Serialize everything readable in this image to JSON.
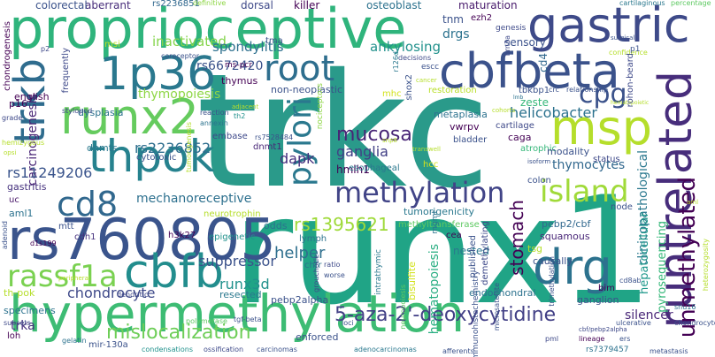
{
  "wordcloud": {
    "words": [
      {
        "text": "trkc",
        "color": "#2a9a8a"
      },
      {
        "text": "runx1",
        "color": "#20a486"
      },
      {
        "text": "proprioceptive",
        "color": "#2fb47c"
      },
      {
        "text": "hypermethylation",
        "color": "#3dbc74"
      },
      {
        "text": "rs760805",
        "color": "#3a548c"
      },
      {
        "text": "runx2",
        "color": "#65cb5e"
      },
      {
        "text": "gastric",
        "color": "#3e4a89"
      },
      {
        "text": "cbfbeta",
        "color": "#3b528b"
      },
      {
        "text": "thpok",
        "color": "#26828e"
      },
      {
        "text": "1p36",
        "color": "#2a788e"
      },
      {
        "text": "runtrelated",
        "color": "#472d7b"
      },
      {
        "text": "drg",
        "color": "#2c728e"
      },
      {
        "text": "msp",
        "color": "#b5de2b"
      },
      {
        "text": "cbfb",
        "color": "#228d8d"
      },
      {
        "text": "trkb",
        "color": "#2f6c8e"
      },
      {
        "text": "root",
        "color": "#2e6e8e"
      },
      {
        "text": "methylation",
        "color": "#414487"
      },
      {
        "text": "island",
        "color": "#a0da39"
      },
      {
        "text": "cd8",
        "color": "#31688e"
      },
      {
        "text": "rassf1a",
        "color": "#7ad151"
      },
      {
        "text": "pylori",
        "color": "#2a788e"
      },
      {
        "text": "cpg",
        "color": "#3b528b"
      },
      {
        "text": "unmethylated",
        "color": "#440154"
      },
      {
        "text": "rs1395621",
        "color": "#9fda3a"
      },
      {
        "text": "mucosa",
        "color": "#482576"
      },
      {
        "text": "mislocalization",
        "color": "#6ece58"
      },
      {
        "text": "5-aza-2'-deoxycytidine",
        "color": "#424086"
      },
      {
        "text": "stomach",
        "color": "#440154"
      },
      {
        "text": "clinicopathological",
        "color": "#2a788e"
      },
      {
        "text": "inactivated",
        "color": "#84d44b"
      },
      {
        "text": "spondylitis",
        "color": "#2d708e"
      },
      {
        "text": "ankylosing",
        "color": "#21918c"
      },
      {
        "text": "rs6672420",
        "color": "#3b528b"
      },
      {
        "text": "thymopoiesis",
        "color": "#8ed645"
      },
      {
        "text": "helicobacter",
        "color": "#2c728e"
      },
      {
        "text": "carcinogenesis",
        "color": "#482475"
      },
      {
        "text": "dapk",
        "color": "#46307e"
      },
      {
        "text": "rs2236852",
        "color": "#2e6e8e"
      },
      {
        "text": "rs11249206",
        "color": "#3a548c"
      },
      {
        "text": "mechanoreceptive",
        "color": "#2d708e"
      },
      {
        "text": "chondrocyte",
        "color": "#3e4989"
      },
      {
        "text": "runx3d",
        "color": "#21918c"
      },
      {
        "text": "helper",
        "color": "#2e6f8e"
      },
      {
        "text": "suppressor",
        "color": "#3b528b"
      },
      {
        "text": "hematopoiesis",
        "color": "#27ad81"
      },
      {
        "text": "ganglia",
        "color": "#424086"
      },
      {
        "text": "thymocytes",
        "color": "#31688e"
      },
      {
        "text": "pyrosequencing",
        "color": "#35b779"
      },
      {
        "text": "hepatocellular",
        "color": "#1f988b"
      },
      {
        "text": "silencer",
        "color": "#482677"
      },
      {
        "text": "trka",
        "color": "#46327e"
      },
      {
        "text": "aberrant",
        "color": "#472c7a"
      },
      {
        "text": "colorectal",
        "color": "#3b528b"
      },
      {
        "text": "osteoblast",
        "color": "#2c728e"
      },
      {
        "text": "killer",
        "color": "#440154"
      },
      {
        "text": "dorsal",
        "color": "#3e4989"
      },
      {
        "text": "maturation",
        "color": "#481a6c"
      },
      {
        "text": "rs2236851",
        "color": "#31688e"
      },
      {
        "text": "definitive",
        "color": "#8ed645"
      },
      {
        "text": "cartilaginous",
        "color": "#2a788e"
      },
      {
        "text": "percentage",
        "color": "#5ec962"
      },
      {
        "text": "drgs",
        "color": "#2c728e"
      },
      {
        "text": "tnm",
        "color": "#3b528b"
      },
      {
        "text": "ezh2",
        "color": "#440154"
      },
      {
        "text": "sensory",
        "color": "#3b528b"
      },
      {
        "text": "cd4",
        "color": "#31688e"
      },
      {
        "text": "genesis",
        "color": "#3e4a89"
      },
      {
        "text": "tma",
        "color": "#3b528b"
      },
      {
        "text": "msi",
        "color": "#bddf26"
      },
      {
        "text": "thymus",
        "color": "#440154"
      },
      {
        "text": "non-neoplastic",
        "color": "#3b528b"
      },
      {
        "text": "restoration",
        "color": "#b8de29"
      },
      {
        "text": "mhc",
        "color": "#d2e21b"
      },
      {
        "text": "english",
        "color": "#440154"
      },
      {
        "text": "dysplasia",
        "color": "#2c728e"
      },
      {
        "text": "gastritis",
        "color": "#46327e"
      },
      {
        "text": "uc",
        "color": "#481668"
      },
      {
        "text": "aml1",
        "color": "#2c728e"
      },
      {
        "text": "dnmts",
        "color": "#2a788e"
      },
      {
        "text": "cytotoxic",
        "color": "#3b528b"
      },
      {
        "text": "embase",
        "color": "#3e4989"
      },
      {
        "text": "dnmt1",
        "color": "#482677"
      },
      {
        "text": "hmlh1",
        "color": "#440154"
      },
      {
        "text": "nociceptors",
        "color": "#8ed645"
      },
      {
        "text": "metaplasia",
        "color": "#2c728e"
      },
      {
        "text": "tbkbp1",
        "color": "#3b528b"
      },
      {
        "text": "zeste",
        "color": "#35b779"
      },
      {
        "text": "vwrpv",
        "color": "#440154"
      },
      {
        "text": "cartilage",
        "color": "#3e4989"
      },
      {
        "text": "caga",
        "color": "#440154"
      },
      {
        "text": "bladder",
        "color": "#3b528b"
      },
      {
        "text": "atrophic",
        "color": "#35b779"
      },
      {
        "text": "modality",
        "color": "#3b528b"
      },
      {
        "text": "status",
        "color": "#3e4989"
      },
      {
        "text": "colon",
        "color": "#3b528b"
      },
      {
        "text": "esophageal",
        "color": "#2a788e"
      },
      {
        "text": "hcc",
        "color": "#d2e21b"
      },
      {
        "text": "node",
        "color": "#3b528b"
      },
      {
        "text": "mtt",
        "color": "#3b528b"
      },
      {
        "text": "cdh1",
        "color": "#46327e"
      },
      {
        "text": "h3k27",
        "color": "#440154"
      },
      {
        "text": "epigenetic",
        "color": "#21918c"
      },
      {
        "text": "neurotrophin",
        "color": "#b5de2b"
      },
      {
        "text": "odds",
        "color": "#2c728e"
      },
      {
        "text": "tumorigenicity",
        "color": "#2a788e"
      },
      {
        "text": "methyltransferase",
        "color": "#5ec962"
      },
      {
        "text": "lymph",
        "color": "#2c728e"
      },
      {
        "text": "nested",
        "color": "#2a788e"
      },
      {
        "text": "cea",
        "color": "#440154"
      },
      {
        "text": "published",
        "color": "#3b528b"
      },
      {
        "text": "demethylating",
        "color": "#3e4989"
      },
      {
        "text": "pebp2/cbf",
        "color": "#31688e"
      },
      {
        "text": "squamous",
        "color": "#482677"
      },
      {
        "text": "tsg",
        "color": "#b5de2b"
      },
      {
        "text": "causally",
        "color": "#3b528b"
      },
      {
        "text": "endochondral",
        "color": "#2c728e"
      },
      {
        "text": "resected",
        "color": "#2a788e"
      },
      {
        "text": "pebp2alpha",
        "color": "#3b528b"
      },
      {
        "text": "chfr",
        "color": "#2c728e"
      },
      {
        "text": "bisulfite",
        "color": "#d2e21b"
      },
      {
        "text": "bim",
        "color": "#440154"
      },
      {
        "text": "ganglion",
        "color": "#3b528b"
      },
      {
        "text": "enforced",
        "color": "#3b528b"
      },
      {
        "text": "specimens",
        "color": "#2c728e"
      },
      {
        "text": "th-pok",
        "color": "#b5de2b"
      },
      {
        "text": "subsets",
        "color": "#3e4989"
      },
      {
        "text": "loh",
        "color": "#440154"
      },
      {
        "text": "mir-130a",
        "color": "#3b528b"
      },
      {
        "text": "condensations",
        "color": "#21918c"
      },
      {
        "text": "ossification",
        "color": "#3e4989"
      },
      {
        "text": "carcinomas",
        "color": "#3b528b"
      },
      {
        "text": "adenocarcinomas",
        "color": "#2a788e"
      },
      {
        "text": "afferents",
        "color": "#3b528b"
      },
      {
        "text": "rs7379457",
        "color": "#2c728e"
      },
      {
        "text": "metastasis",
        "color": "#3b528b"
      },
      {
        "text": "p16",
        "color": "#440154"
      },
      {
        "text": "grade",
        "color": "#3e4989"
      },
      {
        "text": "hemizygous",
        "color": "#b5de2b"
      },
      {
        "text": "adenoid",
        "color": "#3b528b"
      },
      {
        "text": "d1s199",
        "color": "#440154"
      },
      {
        "text": "peripheral",
        "color": "#b5de2b"
      },
      {
        "text": "dendritic",
        "color": "#3e4989"
      },
      {
        "text": "tgf-beta",
        "color": "#3b528b"
      },
      {
        "text": "polymerase",
        "color": "#5ec962"
      },
      {
        "text": "gelatin",
        "color": "#2c728e"
      },
      {
        "text": "chondrogenesis",
        "color": "#440154"
      },
      {
        "text": "frequently",
        "color": "#3e4989"
      },
      {
        "text": "ms-pcr",
        "color": "#440154"
      },
      {
        "text": "coreceptor",
        "color": "#3b528b"
      },
      {
        "text": "stylopod",
        "color": "#3e4989"
      },
      {
        "text": "reaction",
        "color": "#3b528b"
      },
      {
        "text": "annexin",
        "color": "#2c728e"
      },
      {
        "text": "th2",
        "color": "#21918c"
      },
      {
        "text": "rs7528484",
        "color": "#3b528b"
      },
      {
        "text": "decisions",
        "color": "#3e4989"
      },
      {
        "text": "escc",
        "color": "#3b528b"
      },
      {
        "text": "shox2",
        "color": "#3b528b"
      },
      {
        "text": "r126d",
        "color": "#2a788e"
      },
      {
        "text": "brn3a",
        "color": "#3e4989"
      },
      {
        "text": "surgical",
        "color": "#3b528b"
      },
      {
        "text": "confidence",
        "color": "#b5de2b"
      },
      {
        "text": "lmb",
        "color": "#2c728e"
      },
      {
        "text": "crc",
        "color": "#3b528b"
      },
      {
        "text": "relationship",
        "color": "#3b528b"
      },
      {
        "text": "hematopoietic",
        "color": "#b5de2b"
      },
      {
        "text": "mgmt",
        "color": "#2c728e"
      },
      {
        "text": "microsatellite",
        "color": "#3b528b"
      },
      {
        "text": "cd8ab",
        "color": "#3b528b"
      },
      {
        "text": "intrathymic",
        "color": "#2a788e"
      },
      {
        "text": "grouchotle",
        "color": "#3e4989"
      },
      {
        "text": "immunohistochemistry",
        "color": "#3b528b"
      },
      {
        "text": "trimethylation",
        "color": "#3b528b"
      },
      {
        "text": "ratio",
        "color": "#3e4989"
      },
      {
        "text": "worse",
        "color": "#3b528b"
      },
      {
        "text": "neuropoiesis",
        "color": "#5ec962"
      },
      {
        "text": "ulcerative",
        "color": "#3b528b"
      },
      {
        "text": "snu16",
        "color": "#2c728e"
      },
      {
        "text": "cbf/pebp2alpha",
        "color": "#3e4989"
      },
      {
        "text": "lineage",
        "color": "#440154"
      },
      {
        "text": "ers",
        "color": "#3b528b"
      },
      {
        "text": "chondrocytes",
        "color": "#3b528b"
      },
      {
        "text": "heterozygosity",
        "color": "#b5de2b"
      },
      {
        "text": "tumorigenesis",
        "color": "#b5de2b"
      },
      {
        "text": "rohon-beard",
        "color": "#3e4989"
      },
      {
        "text": "p1",
        "color": "#3b528b"
      },
      {
        "text": "p2",
        "color": "#3e4989"
      },
      {
        "text": "adjacent",
        "color": "#b5de2b"
      },
      {
        "text": "opsi",
        "color": "#b5de2b"
      },
      {
        "text": "cohorts",
        "color": "#b5de2b"
      },
      {
        "text": "aml",
        "color": "#b5de2b"
      },
      {
        "text": "pml",
        "color": "#3e4989"
      },
      {
        "text": "loci",
        "color": "#3b528b"
      },
      {
        "text": "snp8",
        "color": "#b5de2b"
      },
      {
        "text": "transwell",
        "color": "#b5de2b"
      },
      {
        "text": "isoform",
        "color": "#3b528b"
      },
      {
        "text": "cancer",
        "color": "#b5de2b"
      }
    ]
  }
}
